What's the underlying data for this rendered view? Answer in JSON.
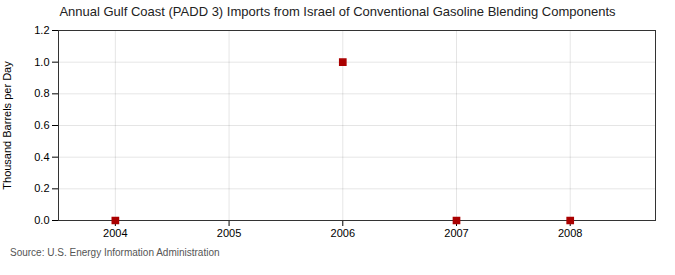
{
  "chart_data": {
    "type": "scatter",
    "title": "Annual Gulf Coast (PADD 3) Imports from Israel of Conventional Gasoline Blending Components",
    "ylabel": "Thousand Barrels per Day",
    "source": "Source: U.S. Energy Information Administration",
    "x": [
      2004,
      2006,
      2007,
      2008
    ],
    "values": [
      0.0,
      1.0,
      0.0,
      0.0
    ],
    "color": "#aa0000",
    "marker": "square",
    "xlim": [
      2003.5,
      2008.75
    ],
    "xticks": [
      2004,
      2005,
      2006,
      2007,
      2008
    ],
    "ylim": [
      0.0,
      1.2
    ],
    "yticks": [
      {
        "value": 0.0,
        "label": "0.0"
      },
      {
        "value": 0.2,
        "label": "0.2"
      },
      {
        "value": 0.4,
        "label": "0.4"
      },
      {
        "value": 0.6,
        "label": "0.6"
      },
      {
        "value": 0.8,
        "label": "0.8"
      },
      {
        "value": 1.0,
        "label": "1.0"
      },
      {
        "value": 1.2,
        "label": "1.2"
      }
    ],
    "grid": true
  }
}
